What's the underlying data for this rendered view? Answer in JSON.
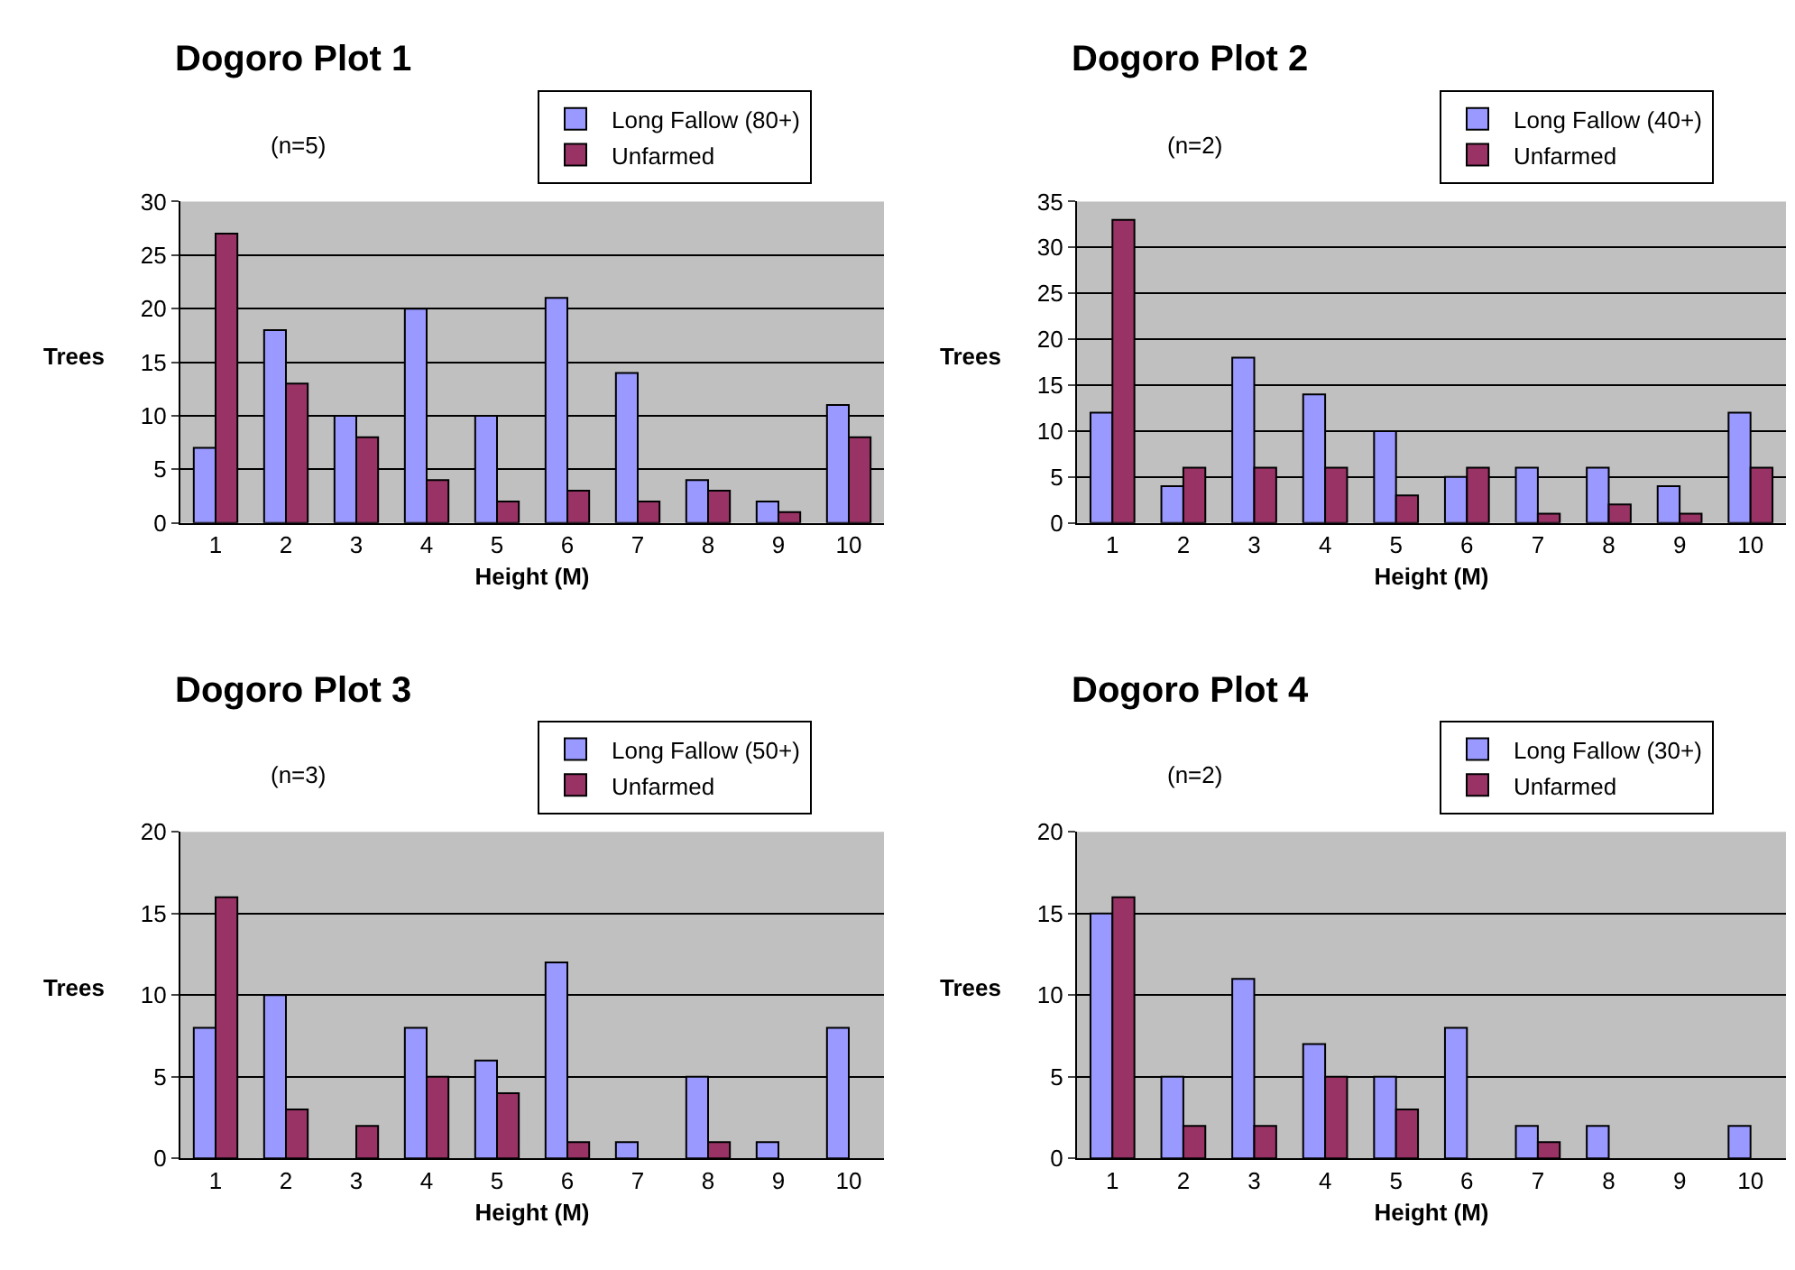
{
  "chart_data": [
    {
      "type": "bar",
      "title": "Dogoro Plot 1",
      "subtitle": "(n=5)",
      "xlabel": "Height (M)",
      "ylabel": "Trees",
      "categories": [
        "1",
        "2",
        "3",
        "4",
        "5",
        "6",
        "7",
        "8",
        "9",
        "10"
      ],
      "ylim": [
        0,
        30
      ],
      "yticks": [
        0,
        5,
        10,
        15,
        20,
        25,
        30
      ],
      "grid": "y",
      "legend": "top right",
      "series": [
        {
          "name": "Long Fallow (80+)",
          "color": "#9999ff",
          "values": [
            7,
            18,
            10,
            20,
            10,
            21,
            14,
            4,
            2,
            11
          ]
        },
        {
          "name": "Unfarmed",
          "color": "#993366",
          "values": [
            27,
            13,
            8,
            4,
            2,
            3,
            2,
            3,
            1,
            8
          ]
        }
      ]
    },
    {
      "type": "bar",
      "title": "Dogoro Plot 2",
      "subtitle": "(n=2)",
      "xlabel": "Height (M)",
      "ylabel": "Trees",
      "categories": [
        "1",
        "2",
        "3",
        "4",
        "5",
        "6",
        "7",
        "8",
        "9",
        "10"
      ],
      "ylim": [
        0,
        35
      ],
      "yticks": [
        0,
        5,
        10,
        15,
        20,
        25,
        30,
        35
      ],
      "grid": "y",
      "legend": "top right",
      "series": [
        {
          "name": "Long Fallow (40+)",
          "color": "#9999ff",
          "values": [
            12,
            4,
            18,
            14,
            10,
            5,
            6,
            6,
            4,
            12
          ]
        },
        {
          "name": "Unfarmed",
          "color": "#993366",
          "values": [
            33,
            6,
            6,
            6,
            3,
            6,
            1,
            2,
            1,
            6
          ]
        }
      ]
    },
    {
      "type": "bar",
      "title": "Dogoro Plot 3",
      "subtitle": "(n=3)",
      "xlabel": "Height (M)",
      "ylabel": "Trees",
      "categories": [
        "1",
        "2",
        "3",
        "4",
        "5",
        "6",
        "7",
        "8",
        "9",
        "10"
      ],
      "ylim": [
        0,
        20
      ],
      "yticks": [
        0,
        5,
        10,
        15,
        20
      ],
      "grid": "y",
      "legend": "top right",
      "series": [
        {
          "name": "Long Fallow (50+)",
          "color": "#9999ff",
          "values": [
            8,
            10,
            0,
            8,
            6,
            12,
            1,
            5,
            1,
            8
          ]
        },
        {
          "name": "Unfarmed",
          "color": "#993366",
          "values": [
            16,
            3,
            2,
            5,
            4,
            1,
            0,
            1,
            0,
            0
          ]
        }
      ]
    },
    {
      "type": "bar",
      "title": "Dogoro Plot 4",
      "subtitle": "(n=2)",
      "xlabel": "Height (M)",
      "ylabel": "Trees",
      "categories": [
        "1",
        "2",
        "3",
        "4",
        "5",
        "6",
        "7",
        "8",
        "9",
        "10"
      ],
      "ylim": [
        0,
        20
      ],
      "yticks": [
        0,
        5,
        10,
        15,
        20
      ],
      "grid": "y",
      "legend": "top right",
      "series": [
        {
          "name": "Long Fallow (30+)",
          "color": "#9999ff",
          "values": [
            15,
            5,
            11,
            7,
            5,
            8,
            2,
            2,
            0,
            2
          ]
        },
        {
          "name": "Unfarmed",
          "color": "#993366",
          "values": [
            16,
            2,
            2,
            5,
            3,
            0,
            1,
            0,
            0,
            0
          ]
        }
      ]
    }
  ]
}
